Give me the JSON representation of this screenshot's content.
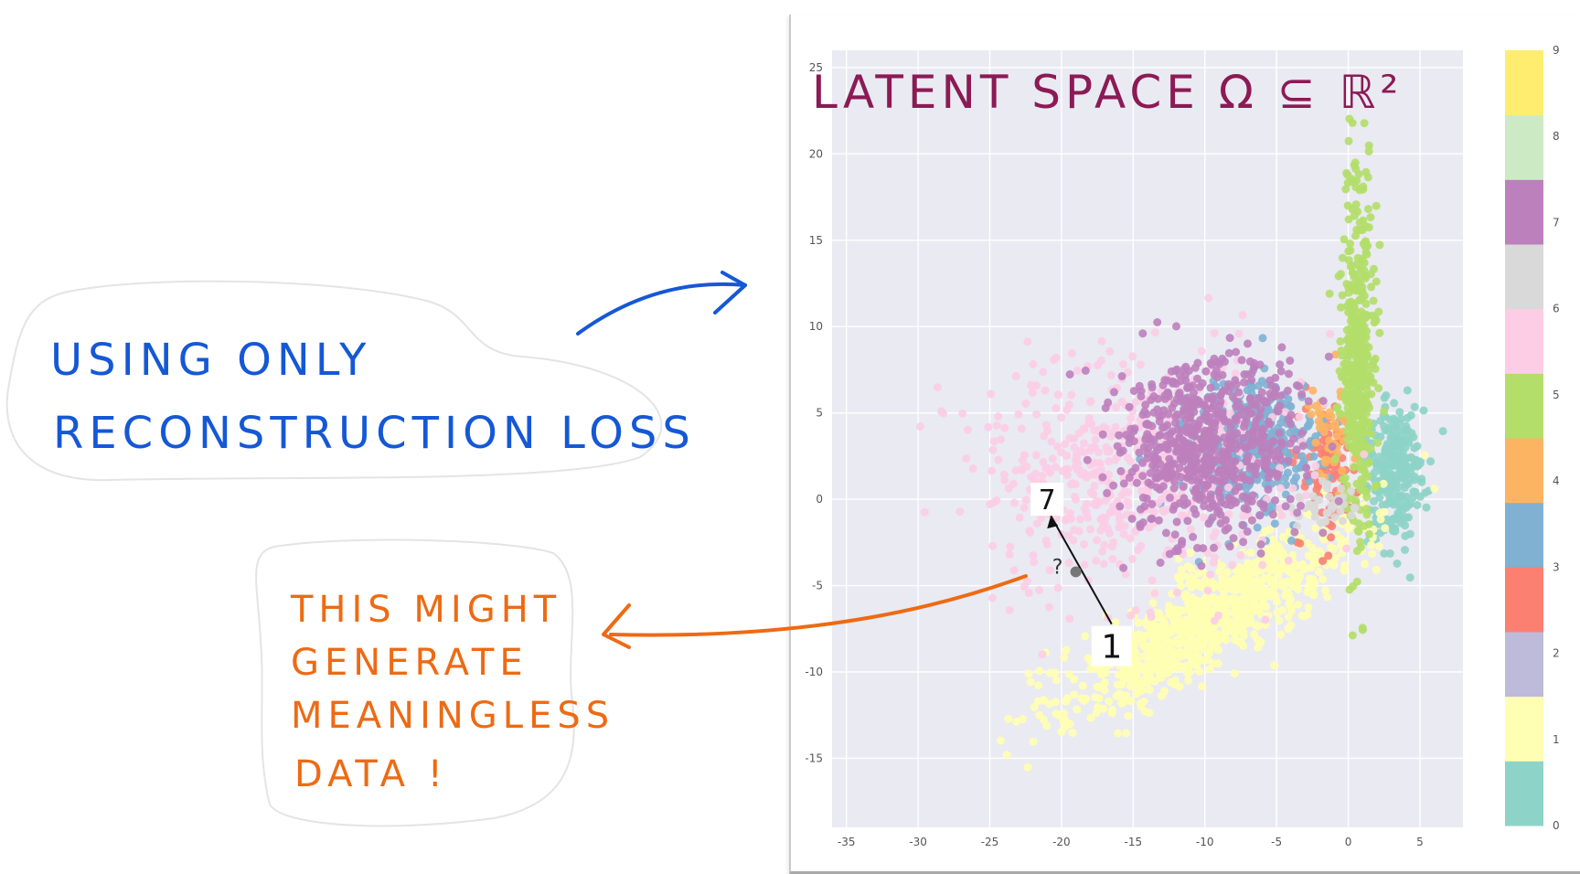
{
  "annotations": {
    "title": "LATENT SPACE Ω ⊆ ℝ²",
    "note_blue": [
      "USING ONLY",
      "RECONSTRUCTION LOSS"
    ],
    "note_orange": [
      "THIS MIGHT",
      "GENERATE",
      "MEANINGLESS",
      "DATA !"
    ],
    "point_labels": {
      "seven": "7",
      "one": "1",
      "question": "?"
    }
  },
  "colors": {
    "plot_bg": "#eaeaf2",
    "title": "#8b1a55",
    "note_blue": "#1558d6",
    "note_orange": "#ee6a13",
    "classes": [
      "#8dd3c7",
      "#ffffb3",
      "#bebada",
      "#fb8072",
      "#80b1d3",
      "#fdb462",
      "#b3de69",
      "#fccde5",
      "#d9d9d9",
      "#bc80bd",
      "#ccebc5",
      "#ffed6f"
    ]
  },
  "chart_data": {
    "type": "scatter",
    "xlim": [
      -36,
      8
    ],
    "ylim": [
      -19,
      26
    ],
    "xticks": [
      -35,
      -30,
      -25,
      -20,
      -15,
      -10,
      -5,
      0,
      5
    ],
    "yticks": [
      -15,
      -10,
      -5,
      0,
      5,
      10,
      15,
      20,
      25
    ],
    "grid": true,
    "colorbar": {
      "ticks": [
        "0",
        "1",
        "2",
        "3",
        "4",
        "5",
        "6",
        "7",
        "8",
        "9"
      ],
      "colormap": "Set3"
    },
    "clusters": [
      {
        "label": 0,
        "center": [
          3.2,
          1.5
        ],
        "spread": [
          1.3,
          3.0
        ],
        "count": 260
      },
      {
        "label": 1,
        "center": [
          -10,
          -7
        ],
        "spread": [
          7.5,
          2.5
        ],
        "count": 900
      },
      {
        "label": 3,
        "center": [
          -1.5,
          2
        ],
        "spread": [
          1.5,
          2.5
        ],
        "count": 90
      },
      {
        "label": 4,
        "center": [
          -7,
          3
        ],
        "spread": [
          3.2,
          2.6
        ],
        "count": 400
      },
      {
        "label": 5,
        "center": [
          -1.2,
          4
        ],
        "spread": [
          1.0,
          2.0
        ],
        "count": 50
      },
      {
        "label": 6,
        "center": [
          0.6,
          8
        ],
        "spread": [
          0.8,
          7
        ],
        "count": 450
      },
      {
        "label": 7,
        "center": [
          -15,
          1.5
        ],
        "spread": [
          7,
          4.5
        ],
        "count": 550
      },
      {
        "label": 8,
        "center": [
          -1.5,
          -0.5
        ],
        "spread": [
          1.2,
          1.0
        ],
        "count": 40
      },
      {
        "label": 9,
        "center": [
          -10,
          3
        ],
        "spread": [
          4,
          3.5
        ],
        "count": 650
      }
    ],
    "highlighted_points": [
      {
        "label": "7",
        "x": -21,
        "y": 0
      },
      {
        "label": "1",
        "x": -16.5,
        "y": -8.5
      },
      {
        "label": "?",
        "x": -19,
        "y": -4.2
      }
    ]
  }
}
